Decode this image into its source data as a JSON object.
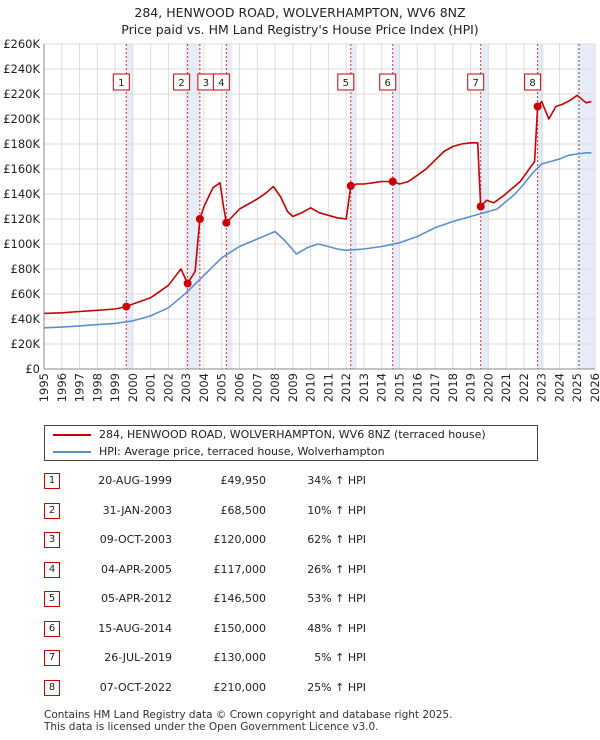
{
  "chart_data": {
    "type": "line",
    "title": "284, HENWOOD ROAD, WOLVERHAMPTON, WV6 8NZ",
    "subtitle": "Price paid vs. HM Land Registry's House Price Index (HPI)",
    "xlabel": "",
    "ylabel": "",
    "xlim": [
      1995,
      2026
    ],
    "ylim": [
      0,
      260000
    ],
    "grid": true,
    "xticks": [
      1995,
      1996,
      1997,
      1998,
      1999,
      2000,
      2001,
      2002,
      2003,
      2004,
      2005,
      2006,
      2007,
      2008,
      2009,
      2010,
      2011,
      2012,
      2013,
      2014,
      2015,
      2016,
      2017,
      2018,
      2019,
      2020,
      2021,
      2022,
      2023,
      2024,
      2025,
      2026
    ],
    "xtick_labels": [
      "1995",
      "1996",
      "1997",
      "1998",
      "1999",
      "2000",
      "2001",
      "2002",
      "2003",
      "2004",
      "2005",
      "2006",
      "2007",
      "2008",
      "2009",
      "2010",
      "2011",
      "2012",
      "2013",
      "2014",
      "2015",
      "2016",
      "2017",
      "2018",
      "2019",
      "2020",
      "2021",
      "2022",
      "2023",
      "2024",
      "2025",
      "2026"
    ],
    "yticks": [
      0,
      20000,
      40000,
      60000,
      80000,
      100000,
      120000,
      140000,
      160000,
      180000,
      200000,
      220000,
      240000,
      260000
    ],
    "ytick_labels": [
      "£0",
      "£20K",
      "£40K",
      "£60K",
      "£80K",
      "£100K",
      "£120K",
      "£140K",
      "£160K",
      "£180K",
      "£200K",
      "£220K",
      "£240K",
      "£260K"
    ],
    "series": [
      {
        "name": "284, HENWOOD ROAD, WOLVERHAMPTON, WV6 8NZ (terraced house)",
        "color": "#cc0000",
        "points": [
          [
            1995.0,
            44500
          ],
          [
            1996.0,
            45000
          ],
          [
            1997.0,
            46000
          ],
          [
            1998.0,
            47000
          ],
          [
            1999.0,
            48000
          ],
          [
            1999.63,
            49950
          ],
          [
            2000.0,
            52000
          ],
          [
            2001.0,
            57000
          ],
          [
            2002.0,
            67000
          ],
          [
            2002.7,
            80000
          ],
          [
            2002.9,
            74000
          ],
          [
            2003.08,
            68500
          ],
          [
            2003.5,
            78000
          ],
          [
            2003.77,
            120000
          ],
          [
            2004.0,
            130000
          ],
          [
            2004.5,
            145000
          ],
          [
            2004.9,
            149000
          ],
          [
            2005.1,
            130000
          ],
          [
            2005.26,
            117000
          ],
          [
            2005.6,
            122000
          ],
          [
            2006.0,
            128000
          ],
          [
            2006.5,
            132000
          ],
          [
            2007.0,
            136000
          ],
          [
            2007.5,
            141000
          ],
          [
            2007.9,
            146000
          ],
          [
            2008.3,
            138000
          ],
          [
            2008.7,
            126000
          ],
          [
            2009.0,
            122000
          ],
          [
            2009.5,
            125000
          ],
          [
            2010.0,
            129000
          ],
          [
            2010.5,
            125000
          ],
          [
            2011.0,
            123000
          ],
          [
            2011.5,
            121000
          ],
          [
            2012.0,
            120000
          ],
          [
            2012.26,
            146500
          ],
          [
            2012.6,
            148000
          ],
          [
            2013.0,
            148000
          ],
          [
            2013.5,
            149000
          ],
          [
            2014.0,
            150000
          ],
          [
            2014.62,
            150000
          ],
          [
            2015.0,
            148000
          ],
          [
            2015.5,
            150000
          ],
          [
            2016.0,
            155000
          ],
          [
            2016.5,
            160000
          ],
          [
            2017.0,
            167000
          ],
          [
            2017.5,
            174000
          ],
          [
            2018.0,
            178000
          ],
          [
            2018.5,
            180000
          ],
          [
            2019.0,
            181000
          ],
          [
            2019.4,
            181000
          ],
          [
            2019.57,
            130000
          ],
          [
            2019.9,
            135000
          ],
          [
            2020.3,
            133000
          ],
          [
            2020.8,
            138000
          ],
          [
            2021.3,
            144000
          ],
          [
            2021.8,
            150000
          ],
          [
            2022.3,
            160000
          ],
          [
            2022.6,
            166000
          ],
          [
            2022.77,
            210000
          ],
          [
            2023.0,
            214000
          ],
          [
            2023.4,
            200000
          ],
          [
            2023.8,
            210000
          ],
          [
            2024.2,
            212000
          ],
          [
            2024.6,
            215000
          ],
          [
            2025.0,
            219000
          ],
          [
            2025.5,
            213000
          ],
          [
            2025.8,
            214000
          ]
        ]
      },
      {
        "name": "HPI: Average price, terraced house, Wolverhampton",
        "color": "#5b8fd4",
        "points": [
          [
            1995.0,
            33000
          ],
          [
            1996.0,
            33500
          ],
          [
            1997.0,
            34500
          ],
          [
            1998.0,
            35500
          ],
          [
            1999.0,
            36500
          ],
          [
            2000.0,
            38500
          ],
          [
            2001.0,
            42500
          ],
          [
            2002.0,
            49000
          ],
          [
            2003.0,
            61000
          ],
          [
            2004.0,
            75000
          ],
          [
            2005.0,
            89000
          ],
          [
            2006.0,
            98000
          ],
          [
            2007.0,
            104000
          ],
          [
            2008.0,
            110000
          ],
          [
            2008.6,
            102000
          ],
          [
            2009.2,
            92000
          ],
          [
            2009.8,
            97000
          ],
          [
            2010.4,
            100000
          ],
          [
            2011.0,
            98000
          ],
          [
            2011.5,
            96000
          ],
          [
            2012.0,
            95000
          ],
          [
            2013.0,
            96000
          ],
          [
            2014.0,
            98000
          ],
          [
            2015.0,
            101000
          ],
          [
            2016.0,
            106000
          ],
          [
            2017.0,
            113000
          ],
          [
            2018.0,
            118000
          ],
          [
            2019.0,
            122000
          ],
          [
            2019.5,
            124000
          ],
          [
            2020.0,
            126000
          ],
          [
            2020.5,
            128000
          ],
          [
            2021.0,
            134000
          ],
          [
            2021.5,
            140000
          ],
          [
            2022.0,
            148000
          ],
          [
            2022.5,
            157000
          ],
          [
            2023.0,
            164000
          ],
          [
            2023.5,
            166000
          ],
          [
            2024.0,
            168000
          ],
          [
            2024.5,
            171000
          ],
          [
            2025.0,
            172000
          ],
          [
            2025.5,
            173000
          ],
          [
            2025.8,
            173000
          ]
        ]
      }
    ],
    "sale_markers": [
      {
        "id": "1",
        "x": 1999.63,
        "y": 49950
      },
      {
        "id": "2",
        "x": 2003.08,
        "y": 68500
      },
      {
        "id": "3",
        "x": 2003.77,
        "y": 120000
      },
      {
        "id": "4",
        "x": 2005.26,
        "y": 117000
      },
      {
        "id": "5",
        "x": 2012.26,
        "y": 146500
      },
      {
        "id": "6",
        "x": 2014.62,
        "y": 150000
      },
      {
        "id": "7",
        "x": 2019.57,
        "y": 130000
      },
      {
        "id": "8",
        "x": 2022.77,
        "y": 210000
      }
    ],
    "shaded_spans": [
      [
        1999.63,
        2000.0
      ],
      [
        2003.08,
        2003.77
      ],
      [
        2005.26,
        2005.6
      ],
      [
        2012.26,
        2012.6
      ],
      [
        2014.62,
        2015.0
      ],
      [
        2019.57,
        2020.0
      ],
      [
        2022.77,
        2023.1
      ],
      [
        2025.1,
        2026.0
      ]
    ]
  },
  "legend": {
    "items": [
      {
        "label": "284, HENWOOD ROAD, WOLVERHAMPTON, WV6 8NZ (terraced house)",
        "color": "#cc0000"
      },
      {
        "label": "HPI: Average price, terraced house, Wolverhampton",
        "color": "#5b8fd4"
      }
    ]
  },
  "sales": [
    {
      "num": "1",
      "date": "20-AUG-1999",
      "price": "£49,950",
      "hpi": "34% ↑ HPI"
    },
    {
      "num": "2",
      "date": "31-JAN-2003",
      "price": "£68,500",
      "hpi": "10% ↑ HPI"
    },
    {
      "num": "3",
      "date": "09-OCT-2003",
      "price": "£120,000",
      "hpi": "62% ↑ HPI"
    },
    {
      "num": "4",
      "date": "04-APR-2005",
      "price": "£117,000",
      "hpi": "26% ↑ HPI"
    },
    {
      "num": "5",
      "date": "05-APR-2012",
      "price": "£146,500",
      "hpi": "53% ↑ HPI"
    },
    {
      "num": "6",
      "date": "15-AUG-2014",
      "price": "£150,000",
      "hpi": "48% ↑ HPI"
    },
    {
      "num": "7",
      "date": "26-JUL-2019",
      "price": "£130,000",
      "hpi": "5% ↑ HPI"
    },
    {
      "num": "8",
      "date": "07-OCT-2022",
      "price": "£210,000",
      "hpi": "25% ↑ HPI"
    }
  ],
  "footer": {
    "line1": "Contains HM Land Registry data © Crown copyright and database right 2025.",
    "line2": "This data is licensed under the Open Government Licence v3.0."
  }
}
